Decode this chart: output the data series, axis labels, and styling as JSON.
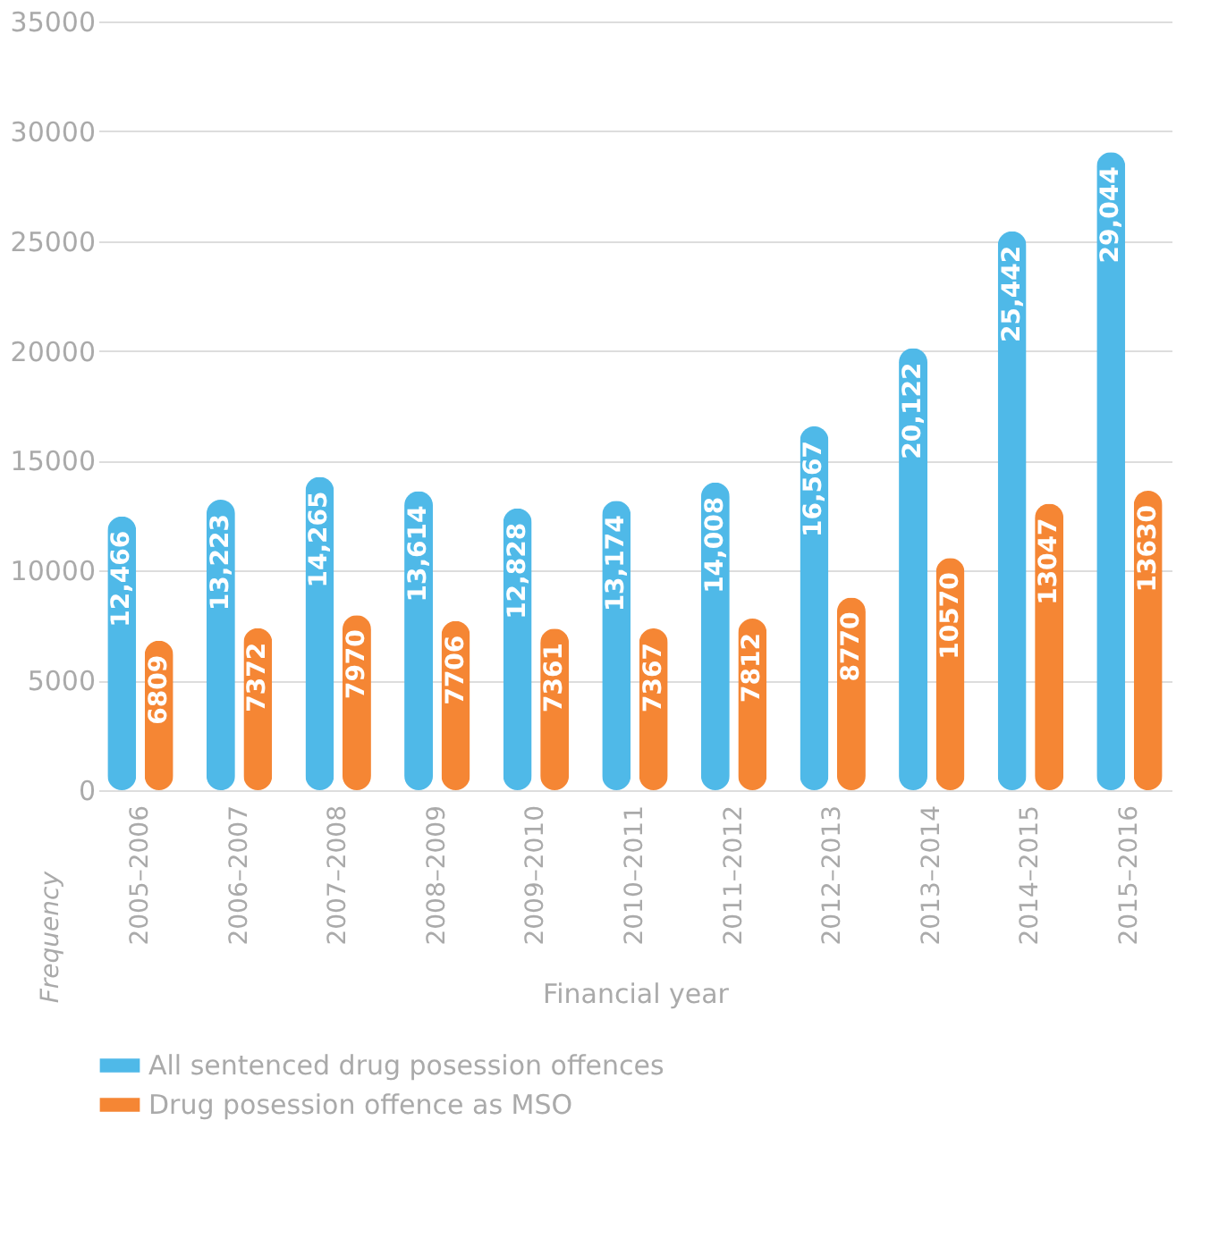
{
  "chart_data": {
    "type": "bar",
    "xlabel": "Financial year",
    "ylabel": "Frequency",
    "categories": [
      "2005–2006",
      "2006–2007",
      "2007–2008",
      "2008–2009",
      "2009–2010",
      "2010–2011",
      "2011–2012",
      "2012–2013",
      "2013–2014",
      "2014–2015",
      "2015–2016"
    ],
    "series": [
      {
        "name": "All sentenced drug posession offences",
        "color": "#4fb9e8",
        "values": [
          12466,
          13223,
          14265,
          13614,
          12828,
          13174,
          14008,
          16567,
          20122,
          25442,
          29044
        ],
        "value_labels": [
          "12,466",
          "13,223",
          "14,265",
          "13,614",
          "12,828",
          "13,174",
          "14,008",
          "16,567",
          "20,122",
          "25,442",
          "29,044"
        ]
      },
      {
        "name": "Drug posession offence as MSO",
        "color": "#f58634",
        "values": [
          6809,
          7372,
          7970,
          7706,
          7361,
          7367,
          7812,
          8770,
          10570,
          13047,
          13630
        ],
        "value_labels": [
          "6809",
          "7372",
          "7970",
          "7706",
          "7361",
          "7367",
          "7812",
          "8770",
          "10570",
          "13047",
          "13630"
        ]
      }
    ],
    "ylim": [
      0,
      35000
    ],
    "yticks": [
      0,
      5000,
      10000,
      15000,
      20000,
      25000,
      30000,
      35000
    ],
    "grid": "y",
    "legend": "bottom"
  }
}
